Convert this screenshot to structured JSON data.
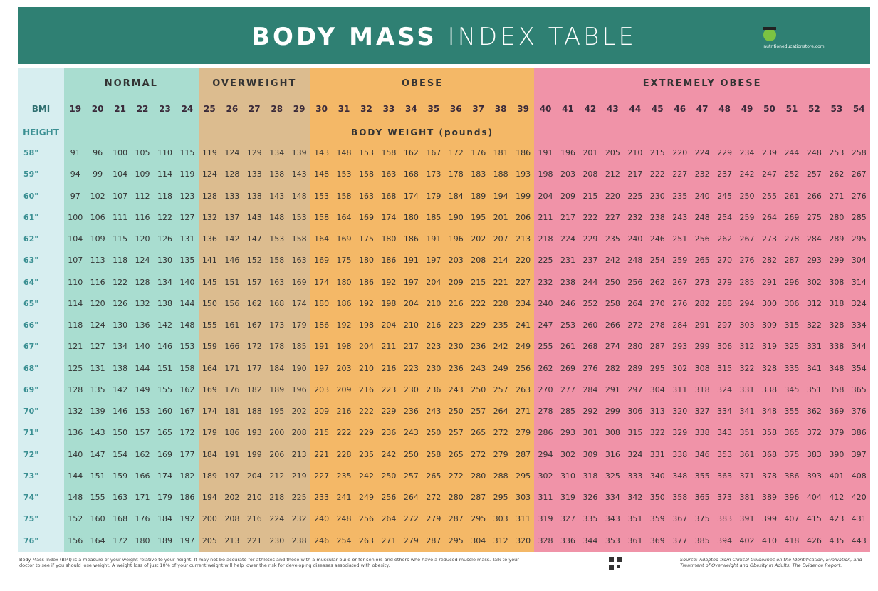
{
  "header": {
    "title_bold": "BODY MASS",
    "title_light": "INDEX TABLE",
    "logo": "nutritioneducationstore.com"
  },
  "table": {
    "groups": [
      "NORMAL",
      "OVERWEIGHT",
      "OBESE",
      "EXTREMELY OBESE"
    ],
    "bmi_label": "BMI",
    "bmi": [
      19,
      20,
      21,
      22,
      23,
      24,
      25,
      26,
      27,
      28,
      29,
      30,
      31,
      32,
      33,
      34,
      35,
      36,
      37,
      38,
      39,
      40,
      41,
      42,
      43,
      44,
      45,
      46,
      47,
      48,
      49,
      50,
      51,
      52,
      53,
      54
    ],
    "height_label": "HEIGHT",
    "weight_label": "BODY WEIGHT (pounds)",
    "rows": [
      {
        "height": "58\"",
        "weights": [
          91,
          96,
          100,
          105,
          110,
          115,
          119,
          124,
          129,
          134,
          139,
          143,
          148,
          153,
          158,
          162,
          167,
          172,
          176,
          181,
          186,
          191,
          196,
          201,
          205,
          210,
          215,
          220,
          224,
          229,
          234,
          239,
          244,
          248,
          253,
          258
        ]
      },
      {
        "height": "59\"",
        "weights": [
          94,
          99,
          104,
          109,
          114,
          119,
          124,
          128,
          133,
          138,
          143,
          148,
          153,
          158,
          163,
          168,
          173,
          178,
          183,
          188,
          193,
          198,
          203,
          208,
          212,
          217,
          222,
          227,
          232,
          237,
          242,
          247,
          252,
          257,
          262,
          267
        ]
      },
      {
        "height": "60\"",
        "weights": [
          97,
          102,
          107,
          112,
          118,
          123,
          128,
          133,
          138,
          143,
          148,
          153,
          158,
          163,
          168,
          174,
          179,
          184,
          189,
          194,
          199,
          204,
          209,
          215,
          220,
          225,
          230,
          235,
          240,
          245,
          250,
          255,
          261,
          266,
          271,
          276
        ]
      },
      {
        "height": "61\"",
        "weights": [
          100,
          106,
          111,
          116,
          122,
          127,
          132,
          137,
          143,
          148,
          153,
          158,
          164,
          169,
          174,
          180,
          185,
          190,
          195,
          201,
          206,
          211,
          217,
          222,
          227,
          232,
          238,
          243,
          248,
          254,
          259,
          264,
          269,
          275,
          280,
          285
        ]
      },
      {
        "height": "62\"",
        "weights": [
          104,
          109,
          115,
          120,
          126,
          131,
          136,
          142,
          147,
          153,
          158,
          164,
          169,
          175,
          180,
          186,
          191,
          196,
          202,
          207,
          213,
          218,
          224,
          229,
          235,
          240,
          246,
          251,
          256,
          262,
          267,
          273,
          278,
          284,
          289,
          295
        ]
      },
      {
        "height": "63\"",
        "weights": [
          107,
          113,
          118,
          124,
          130,
          135,
          141,
          146,
          152,
          158,
          163,
          169,
          175,
          180,
          186,
          191,
          197,
          203,
          208,
          214,
          220,
          225,
          231,
          237,
          242,
          248,
          254,
          259,
          265,
          270,
          276,
          282,
          287,
          293,
          299,
          304
        ]
      },
      {
        "height": "64\"",
        "weights": [
          110,
          116,
          122,
          128,
          134,
          140,
          145,
          151,
          157,
          163,
          169,
          174,
          180,
          186,
          192,
          197,
          204,
          209,
          215,
          221,
          227,
          232,
          238,
          244,
          250,
          256,
          262,
          267,
          273,
          279,
          285,
          291,
          296,
          302,
          308,
          314
        ]
      },
      {
        "height": "65\"",
        "weights": [
          114,
          120,
          126,
          132,
          138,
          144,
          150,
          156,
          162,
          168,
          174,
          180,
          186,
          192,
          198,
          204,
          210,
          216,
          222,
          228,
          234,
          240,
          246,
          252,
          258,
          264,
          270,
          276,
          282,
          288,
          294,
          300,
          306,
          312,
          318,
          324
        ]
      },
      {
        "height": "66\"",
        "weights": [
          118,
          124,
          130,
          136,
          142,
          148,
          155,
          161,
          167,
          173,
          179,
          186,
          192,
          198,
          204,
          210,
          216,
          223,
          229,
          235,
          241,
          247,
          253,
          260,
          266,
          272,
          278,
          284,
          291,
          297,
          303,
          309,
          315,
          322,
          328,
          334
        ]
      },
      {
        "height": "67\"",
        "weights": [
          121,
          127,
          134,
          140,
          146,
          153,
          159,
          166,
          172,
          178,
          185,
          191,
          198,
          204,
          211,
          217,
          223,
          230,
          236,
          242,
          249,
          255,
          261,
          268,
          274,
          280,
          287,
          293,
          299,
          306,
          312,
          319,
          325,
          331,
          338,
          344
        ]
      },
      {
        "height": "68\"",
        "weights": [
          125,
          131,
          138,
          144,
          151,
          158,
          164,
          171,
          177,
          184,
          190,
          197,
          203,
          210,
          216,
          223,
          230,
          236,
          243,
          249,
          256,
          262,
          269,
          276,
          282,
          289,
          295,
          302,
          308,
          315,
          322,
          328,
          335,
          341,
          348,
          354
        ]
      },
      {
        "height": "69\"",
        "weights": [
          128,
          135,
          142,
          149,
          155,
          162,
          169,
          176,
          182,
          189,
          196,
          203,
          209,
          216,
          223,
          230,
          236,
          243,
          250,
          257,
          263,
          270,
          277,
          284,
          291,
          297,
          304,
          311,
          318,
          324,
          331,
          338,
          345,
          351,
          358,
          365
        ]
      },
      {
        "height": "70\"",
        "weights": [
          132,
          139,
          146,
          153,
          160,
          167,
          174,
          181,
          188,
          195,
          202,
          209,
          216,
          222,
          229,
          236,
          243,
          250,
          257,
          264,
          271,
          278,
          285,
          292,
          299,
          306,
          313,
          320,
          327,
          334,
          341,
          348,
          355,
          362,
          369,
          376
        ]
      },
      {
        "height": "71\"",
        "weights": [
          136,
          143,
          150,
          157,
          165,
          172,
          179,
          186,
          193,
          200,
          208,
          215,
          222,
          229,
          236,
          243,
          250,
          257,
          265,
          272,
          279,
          286,
          293,
          301,
          308,
          315,
          322,
          329,
          338,
          343,
          351,
          358,
          365,
          372,
          379,
          386
        ]
      },
      {
        "height": "72\"",
        "weights": [
          140,
          147,
          154,
          162,
          169,
          177,
          184,
          191,
          199,
          206,
          213,
          221,
          228,
          235,
          242,
          250,
          258,
          265,
          272,
          279,
          287,
          294,
          302,
          309,
          316,
          324,
          331,
          338,
          346,
          353,
          361,
          368,
          375,
          383,
          390,
          397
        ]
      },
      {
        "height": "73\"",
        "weights": [
          144,
          151,
          159,
          166,
          174,
          182,
          189,
          197,
          204,
          212,
          219,
          227,
          235,
          242,
          250,
          257,
          265,
          272,
          280,
          288,
          295,
          302,
          310,
          318,
          325,
          333,
          340,
          348,
          355,
          363,
          371,
          378,
          386,
          393,
          401,
          408
        ]
      },
      {
        "height": "74\"",
        "weights": [
          148,
          155,
          163,
          171,
          179,
          186,
          194,
          202,
          210,
          218,
          225,
          233,
          241,
          249,
          256,
          264,
          272,
          280,
          287,
          295,
          303,
          311,
          319,
          326,
          334,
          342,
          350,
          358,
          365,
          373,
          381,
          389,
          396,
          404,
          412,
          420
        ]
      },
      {
        "height": "75\"",
        "weights": [
          152,
          160,
          168,
          176,
          184,
          192,
          200,
          208,
          216,
          224,
          232,
          240,
          248,
          256,
          264,
          272,
          279,
          287,
          295,
          303,
          311,
          319,
          327,
          335,
          343,
          351,
          359,
          367,
          375,
          383,
          391,
          399,
          407,
          415,
          423,
          431
        ]
      },
      {
        "height": "76\"",
        "weights": [
          156,
          164,
          172,
          180,
          189,
          197,
          205,
          213,
          221,
          230,
          238,
          246,
          254,
          263,
          271,
          279,
          287,
          295,
          304,
          312,
          320,
          328,
          336,
          344,
          353,
          361,
          369,
          377,
          385,
          394,
          402,
          410,
          418,
          426,
          435,
          443
        ]
      }
    ]
  },
  "footer": {
    "note": "Body Mass Index (BMI) is a measure of your weight relative to your height. It may not be accurate for athletes and those with a muscular build or for seniors and others who have a reduced muscle mass. Talk to your doctor to see if you should lose weight. A weight loss of just 10% of your current weight will help lower the risk for developing diseases associated with obesity.",
    "source": "Source: Adapted from Clinical Guidelines on the Identification, Evaluation, and Treatment of Overweight and Obesity in Adults: The Evidence Report."
  }
}
